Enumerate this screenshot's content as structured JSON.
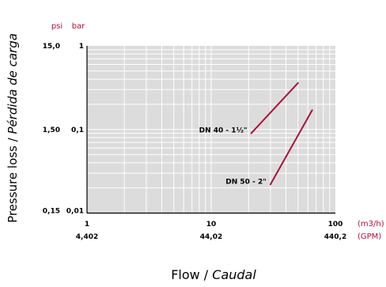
{
  "chart_data": {
    "type": "line",
    "xscale": "log",
    "yscale": "log",
    "xlim": [
      1,
      100
    ],
    "ylim": [
      0.01,
      1
    ],
    "grid": true,
    "ylabel_main": "Pressure loss / ",
    "ylabel_italic": "Pérdida de carga",
    "xlabel_main": "Flow / ",
    "xlabel_italic": "Caudal",
    "y_unit_psi": "psi",
    "y_unit_bar": "bar",
    "x_unit_primary": "(m3/h)",
    "x_unit_secondary": "(GPM)",
    "x_ticks": [
      {
        "value": 1,
        "label": "1",
        "secondary": "4,402"
      },
      {
        "value": 10,
        "label": "10",
        "secondary": "44,02"
      },
      {
        "value": 100,
        "label": "100",
        "secondary": "440,2"
      }
    ],
    "y_ticks": [
      {
        "value": 1,
        "bar": "1",
        "psi": "15,0"
      },
      {
        "value": 0.1,
        "bar": "0,1",
        "psi": "1,50"
      },
      {
        "value": 0.01,
        "bar": "0,01",
        "psi": "0,15"
      }
    ],
    "series": [
      {
        "name": "DN 40 - 1½\"",
        "x": [
          21,
          50
        ],
        "y": [
          0.09,
          0.36
        ]
      },
      {
        "name": "DN 50 - 2\"",
        "x": [
          30,
          65
        ],
        "y": [
          0.022,
          0.17
        ]
      }
    ],
    "line_color": "#a8123d",
    "unit_color": "#b0103a",
    "plot_bg": "#dcdcdc"
  }
}
